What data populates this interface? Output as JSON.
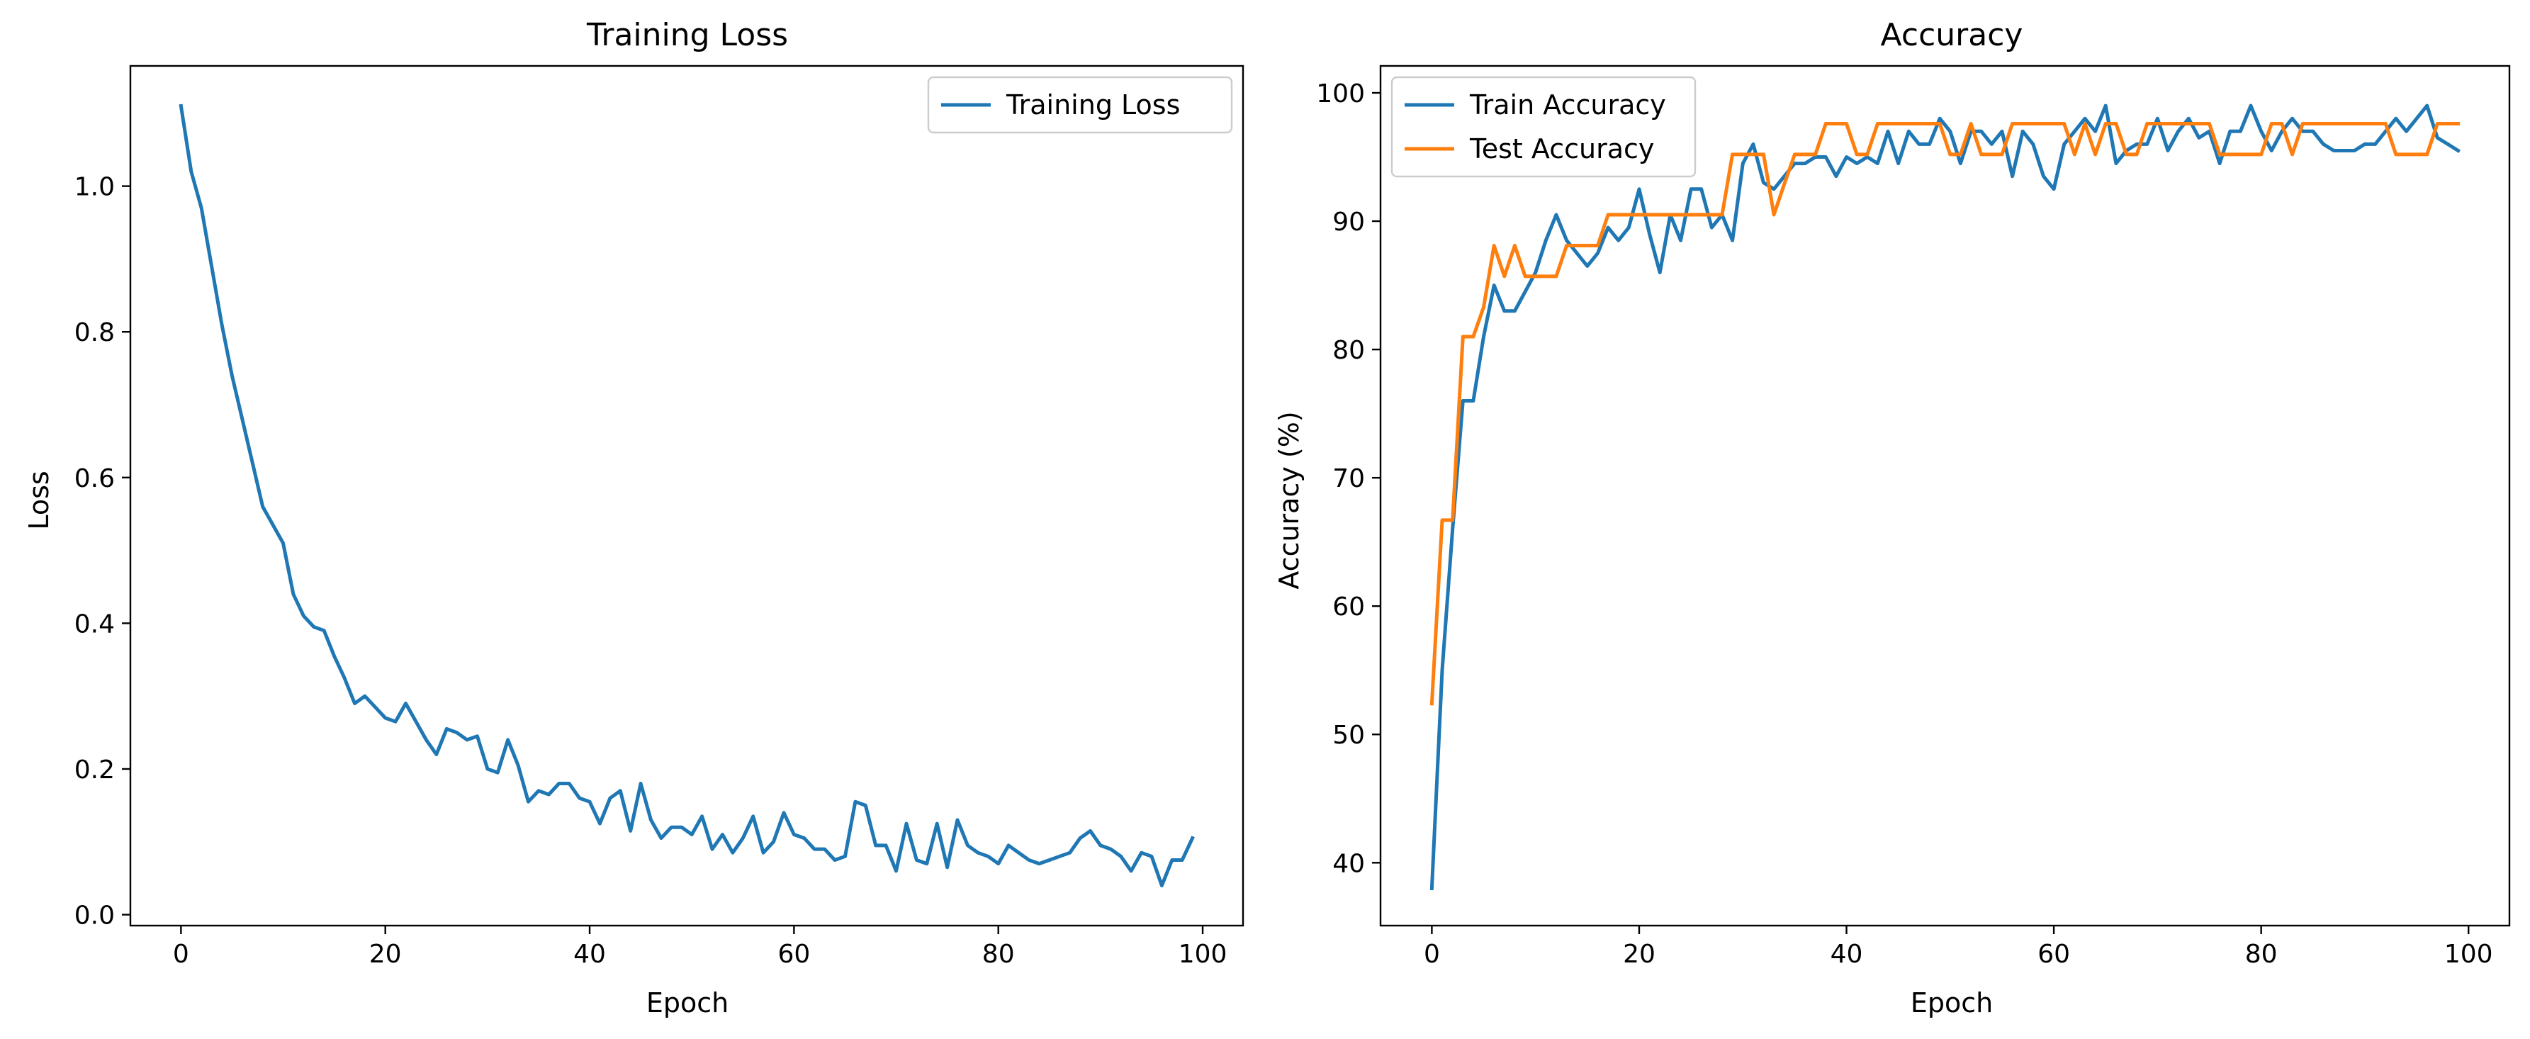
{
  "chart_data": [
    {
      "type": "line",
      "title": "Training Loss",
      "xlabel": "Epoch",
      "ylabel": "Loss",
      "xlim": [
        -4.95,
        103.95
      ],
      "ylim": [
        -0.015,
        1.165
      ],
      "xticks": [
        0,
        20,
        40,
        60,
        80,
        100
      ],
      "yticks": [
        0.0,
        0.2,
        0.4,
        0.6,
        0.8,
        1.0
      ],
      "grid": false,
      "legend": "upper right",
      "colors": {
        "series": [
          "#1f77b4"
        ]
      },
      "series": [
        {
          "name": "Training Loss",
          "x": [
            0,
            1,
            2,
            3,
            4,
            5,
            6,
            7,
            8,
            9,
            10,
            11,
            12,
            13,
            14,
            15,
            16,
            17,
            18,
            19,
            20,
            21,
            22,
            23,
            24,
            25,
            26,
            27,
            28,
            29,
            30,
            31,
            32,
            33,
            34,
            35,
            36,
            37,
            38,
            39,
            40,
            41,
            42,
            43,
            44,
            45,
            46,
            47,
            48,
            49,
            50,
            51,
            52,
            53,
            54,
            55,
            56,
            57,
            58,
            59,
            60,
            61,
            62,
            63,
            64,
            65,
            66,
            67,
            68,
            69,
            70,
            71,
            72,
            73,
            74,
            75,
            76,
            77,
            78,
            79,
            80,
            81,
            82,
            83,
            84,
            85,
            86,
            87,
            88,
            89,
            90,
            91,
            92,
            93,
            94,
            95,
            96,
            97,
            98,
            99
          ],
          "values": [
            1.11,
            1.02,
            0.97,
            0.89,
            0.81,
            0.74,
            0.68,
            0.62,
            0.56,
            0.535,
            0.51,
            0.44,
            0.41,
            0.395,
            0.39,
            0.355,
            0.325,
            0.29,
            0.3,
            0.285,
            0.27,
            0.265,
            0.29,
            0.265,
            0.24,
            0.22,
            0.255,
            0.25,
            0.24,
            0.245,
            0.2,
            0.195,
            0.24,
            0.205,
            0.155,
            0.17,
            0.165,
            0.18,
            0.18,
            0.16,
            0.155,
            0.125,
            0.16,
            0.17,
            0.115,
            0.18,
            0.13,
            0.105,
            0.12,
            0.12,
            0.11,
            0.135,
            0.09,
            0.11,
            0.085,
            0.105,
            0.135,
            0.085,
            0.1,
            0.14,
            0.11,
            0.105,
            0.09,
            0.09,
            0.075,
            0.08,
            0.155,
            0.15,
            0.095,
            0.095,
            0.06,
            0.125,
            0.075,
            0.07,
            0.125,
            0.065,
            0.13,
            0.095,
            0.085,
            0.08,
            0.07,
            0.095,
            0.085,
            0.075,
            0.07,
            0.075,
            0.08,
            0.085,
            0.105,
            0.115,
            0.095,
            0.09,
            0.08,
            0.06,
            0.085,
            0.08,
            0.04,
            0.075,
            0.075,
            0.105
          ]
        }
      ]
    },
    {
      "type": "line",
      "title": "Accuracy",
      "xlabel": "Epoch",
      "ylabel": "Accuracy (%)",
      "xlim": [
        -4.95,
        103.95
      ],
      "ylim": [
        35.1,
        102.1
      ],
      "xticks": [
        0,
        20,
        40,
        60,
        80,
        100
      ],
      "yticks": [
        40,
        50,
        60,
        70,
        80,
        90,
        100
      ],
      "grid": false,
      "legend": "upper left",
      "colors": {
        "series": [
          "#1f77b4",
          "#ff7f0e"
        ]
      },
      "series": [
        {
          "name": "Train Accuracy",
          "x": [
            0,
            1,
            2,
            3,
            4,
            5,
            6,
            7,
            8,
            9,
            10,
            11,
            12,
            13,
            14,
            15,
            16,
            17,
            18,
            19,
            20,
            21,
            22,
            23,
            24,
            25,
            26,
            27,
            28,
            29,
            30,
            31,
            32,
            33,
            34,
            35,
            36,
            37,
            38,
            39,
            40,
            41,
            42,
            43,
            44,
            45,
            46,
            47,
            48,
            49,
            50,
            51,
            52,
            53,
            54,
            55,
            56,
            57,
            58,
            59,
            60,
            61,
            62,
            63,
            64,
            65,
            66,
            67,
            68,
            69,
            70,
            71,
            72,
            73,
            74,
            75,
            76,
            77,
            78,
            79,
            80,
            81,
            82,
            83,
            84,
            85,
            86,
            87,
            88,
            89,
            90,
            91,
            92,
            93,
            94,
            95,
            96,
            97,
            98,
            99
          ],
          "values": [
            38,
            55,
            66,
            76,
            76,
            81,
            85,
            83,
            83,
            84.5,
            86,
            88.5,
            90.5,
            88.5,
            87.5,
            86.5,
            87.5,
            89.5,
            88.5,
            89.5,
            92.5,
            89,
            86,
            90.5,
            88.5,
            92.5,
            92.5,
            89.5,
            90.5,
            88.5,
            94.5,
            96,
            93,
            92.5,
            93.5,
            94.5,
            94.5,
            95,
            95,
            93.5,
            95,
            94.5,
            95,
            94.5,
            97,
            94.5,
            97,
            96,
            96,
            98,
            97,
            94.5,
            97,
            97,
            96,
            97,
            93.5,
            97,
            96,
            93.5,
            92.5,
            96,
            97,
            98,
            97,
            99,
            94.5,
            95.5,
            96,
            96,
            98,
            95.5,
            97,
            98,
            96.5,
            97,
            94.5,
            97,
            97,
            99,
            97,
            95.5,
            97,
            98,
            97,
            97,
            96,
            95.5,
            95.5,
            95.5,
            96,
            96,
            97,
            98,
            97,
            98,
            99,
            96.5,
            96,
            95.5
          ]
        },
        {
          "name": "Test Accuracy",
          "x": [
            0,
            1,
            2,
            3,
            4,
            5,
            6,
            7,
            8,
            9,
            10,
            11,
            12,
            13,
            14,
            15,
            16,
            17,
            18,
            19,
            20,
            21,
            22,
            23,
            24,
            25,
            26,
            27,
            28,
            29,
            30,
            31,
            32,
            33,
            34,
            35,
            36,
            37,
            38,
            39,
            40,
            41,
            42,
            43,
            44,
            45,
            46,
            47,
            48,
            49,
            50,
            51,
            52,
            53,
            54,
            55,
            56,
            57,
            58,
            59,
            60,
            61,
            62,
            63,
            64,
            65,
            66,
            67,
            68,
            69,
            70,
            71,
            72,
            73,
            74,
            75,
            76,
            77,
            78,
            79,
            80,
            81,
            82,
            83,
            84,
            85,
            86,
            87,
            88,
            89,
            90,
            91,
            92,
            93,
            94,
            95,
            96,
            97,
            98,
            99
          ],
          "values": [
            52.4,
            66.7,
            66.7,
            81,
            81,
            83.3,
            88.1,
            85.7,
            88.1,
            85.7,
            85.7,
            85.7,
            85.7,
            88.1,
            88.1,
            88.1,
            88.1,
            90.5,
            90.5,
            90.5,
            90.5,
            90.5,
            90.5,
            90.5,
            90.5,
            90.5,
            90.5,
            90.5,
            90.5,
            95.2,
            95.2,
            95.2,
            95.2,
            90.5,
            92.9,
            95.2,
            95.2,
            95.2,
            97.6,
            97.6,
            97.6,
            95.2,
            95.2,
            97.6,
            97.6,
            97.6,
            97.6,
            97.6,
            97.6,
            97.6,
            95.2,
            95.2,
            97.6,
            95.2,
            95.2,
            95.2,
            97.6,
            97.6,
            97.6,
            97.6,
            97.6,
            97.6,
            95.2,
            97.6,
            95.2,
            97.6,
            97.6,
            95.2,
            95.2,
            97.6,
            97.6,
            97.6,
            97.6,
            97.6,
            97.6,
            97.6,
            95.2,
            95.2,
            95.2,
            95.2,
            95.2,
            97.6,
            97.6,
            95.2,
            97.6,
            97.6,
            97.6,
            97.6,
            97.6,
            97.6,
            97.6,
            97.6,
            97.6,
            95.2,
            95.2,
            95.2,
            95.2,
            97.6,
            97.6,
            97.6
          ]
        }
      ]
    }
  ]
}
